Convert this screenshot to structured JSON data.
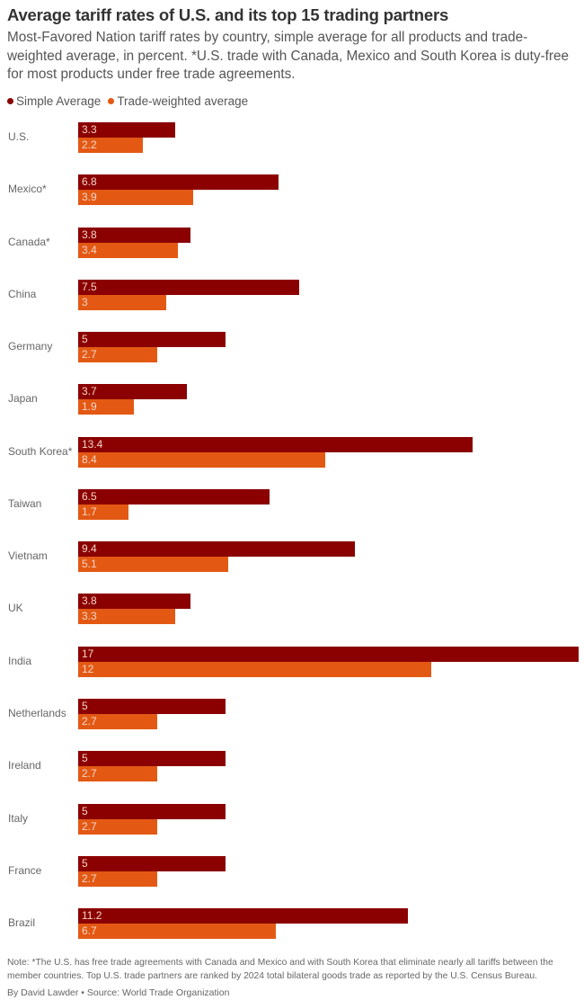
{
  "title": "Average tariff rates of U.S. and its top 15 trading partners",
  "subtitle": "Most-Favored Nation tariff rates by country, simple average for all products and trade-weighted average, in percent. *U.S. trade with Canada, Mexico and South Korea is duty-free for most products under free trade agreements.",
  "note": "Note: *The U.S. has free trade agreements with Canada and Mexico and with South Korea that eliminate nearly all tariffs between the member countries. Top U.S. trade partners are ranked by 2024 total bilateral goods trade as reported by the U.S. Census Bureau.",
  "byline": "By David Lawder • Source: World Trade Organization",
  "chart_data": {
    "type": "bar",
    "orientation": "horizontal",
    "grid": false,
    "legend_placement": "top-left",
    "xlim": [
      0,
      17
    ],
    "categories": [
      "U.S.",
      "Mexico*",
      "Canada*",
      "China",
      "Germany",
      "Japan",
      "South Korea*",
      "Taiwan",
      "Vietnam",
      "UK",
      "India",
      "Netherlands",
      "Ireland",
      "Italy",
      "France",
      "Brazil"
    ],
    "series": [
      {
        "name": "Simple Average",
        "color": "#8b0000",
        "values": [
          3.3,
          6.8,
          3.8,
          7.5,
          5,
          3.7,
          13.4,
          6.5,
          9.4,
          3.8,
          17,
          5,
          5,
          5,
          5,
          11.2
        ]
      },
      {
        "name": "Trade-weighted average",
        "color": "#e35914",
        "values": [
          2.2,
          3.9,
          3.4,
          3,
          2.7,
          1.9,
          8.4,
          1.7,
          5.1,
          3.3,
          12,
          2.7,
          2.7,
          2.7,
          2.7,
          6.7
        ]
      }
    ]
  }
}
